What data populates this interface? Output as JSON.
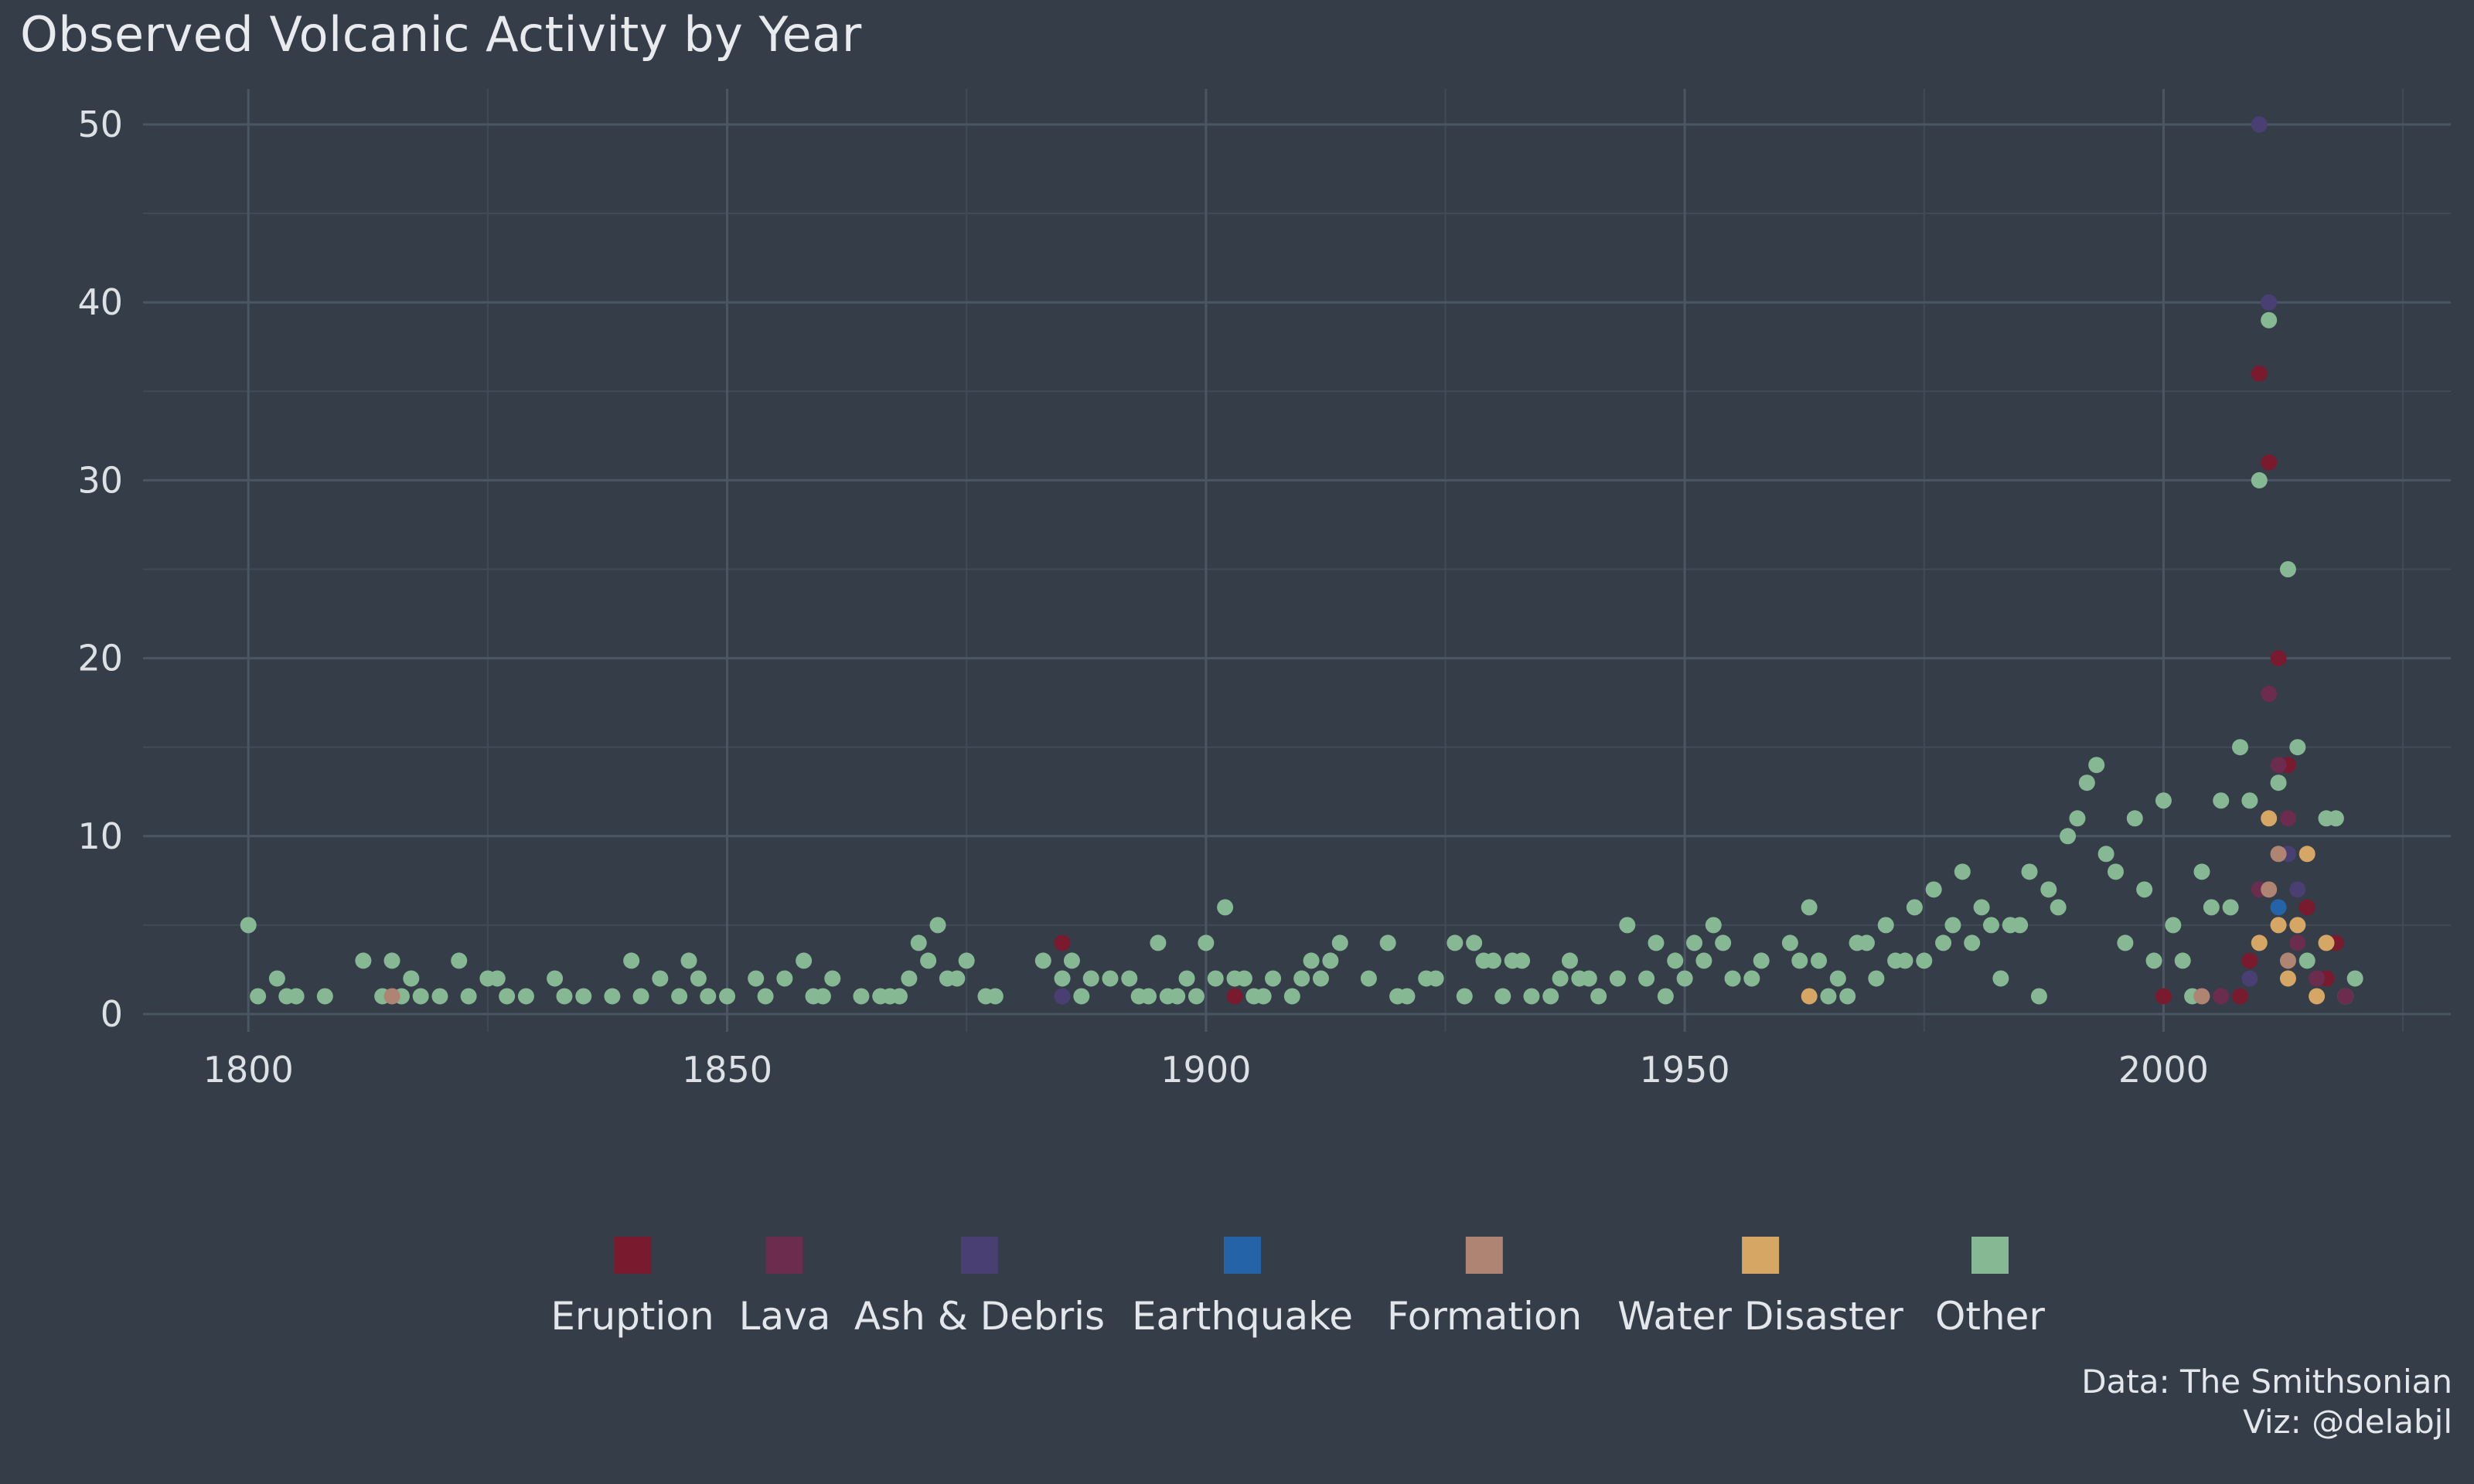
{
  "title": "Observed Volcanic Activity by Year",
  "caption": {
    "line1": "Data: The Smithsonian",
    "line2": "Viz: @delabjl"
  },
  "colors": {
    "background": "#343d48",
    "grid_major": "#4b5664",
    "grid_minor": "#414b57",
    "text": "#e3e6ea"
  },
  "chart_data": {
    "type": "scatter",
    "title": "Observed Volcanic Activity by Year",
    "xlabel": "",
    "ylabel": "",
    "xlim": [
      1789,
      2030
    ],
    "ylim": [
      -1,
      52
    ],
    "x_ticks": [
      1800,
      1850,
      1900,
      1950,
      2000
    ],
    "y_ticks": [
      0,
      10,
      20,
      30,
      40,
      50
    ],
    "grid": true,
    "legend_position": "bottom",
    "series": [
      {
        "name": "Eruption",
        "color": "#7a1a2e",
        "points": [
          [
            1885,
            4
          ],
          [
            1903,
            1
          ],
          [
            2000,
            1
          ],
          [
            2008,
            1
          ],
          [
            2009,
            3
          ],
          [
            2010,
            36
          ],
          [
            2011,
            31
          ],
          [
            2012,
            20
          ],
          [
            2013,
            14
          ],
          [
            2015,
            6
          ],
          [
            2017,
            2
          ],
          [
            2018,
            4
          ]
        ]
      },
      {
        "name": "Lava",
        "color": "#6b2c4d",
        "points": [
          [
            2004,
            1
          ],
          [
            2006,
            1
          ],
          [
            2010,
            7
          ],
          [
            2011,
            18
          ],
          [
            2012,
            14
          ],
          [
            2013,
            11
          ],
          [
            2014,
            4
          ],
          [
            2016,
            2
          ],
          [
            2019,
            1
          ]
        ]
      },
      {
        "name": "Ash & Debris",
        "color": "#4a3f73",
        "points": [
          [
            1885,
            1
          ],
          [
            2009,
            2
          ],
          [
            2010,
            50
          ],
          [
            2011,
            40
          ],
          [
            2012,
            5
          ],
          [
            2013,
            9
          ],
          [
            2014,
            7
          ]
        ]
      },
      {
        "name": "Earthquake",
        "color": "#2563a8",
        "points": [
          [
            2012,
            6
          ]
        ]
      },
      {
        "name": "Formation",
        "color": "#b08472",
        "points": [
          [
            1815,
            1
          ],
          [
            2004,
            1
          ],
          [
            2011,
            7
          ],
          [
            2012,
            9
          ],
          [
            2013,
            3
          ]
        ]
      },
      {
        "name": "Water Disaster",
        "color": "#d6a665",
        "points": [
          [
            1963,
            1
          ],
          [
            2010,
            4
          ],
          [
            2011,
            11
          ],
          [
            2012,
            5
          ],
          [
            2013,
            2
          ],
          [
            2014,
            5
          ],
          [
            2015,
            9
          ],
          [
            2016,
            1
          ],
          [
            2017,
            4
          ]
        ]
      },
      {
        "name": "Other",
        "color": "#86b894",
        "points": [
          [
            1800,
            5
          ],
          [
            1801,
            1
          ],
          [
            1803,
            2
          ],
          [
            1804,
            1
          ],
          [
            1805,
            1
          ],
          [
            1808,
            1
          ],
          [
            1812,
            3
          ],
          [
            1814,
            1
          ],
          [
            1815,
            3
          ],
          [
            1816,
            1
          ],
          [
            1817,
            2
          ],
          [
            1818,
            1
          ],
          [
            1820,
            1
          ],
          [
            1822,
            3
          ],
          [
            1823,
            1
          ],
          [
            1825,
            2
          ],
          [
            1826,
            2
          ],
          [
            1827,
            1
          ],
          [
            1829,
            1
          ],
          [
            1832,
            2
          ],
          [
            1833,
            1
          ],
          [
            1835,
            1
          ],
          [
            1838,
            1
          ],
          [
            1840,
            3
          ],
          [
            1841,
            1
          ],
          [
            1843,
            2
          ],
          [
            1845,
            1
          ],
          [
            1846,
            3
          ],
          [
            1847,
            2
          ],
          [
            1848,
            1
          ],
          [
            1850,
            1
          ],
          [
            1853,
            2
          ],
          [
            1854,
            1
          ],
          [
            1856,
            2
          ],
          [
            1858,
            3
          ],
          [
            1859,
            1
          ],
          [
            1860,
            1
          ],
          [
            1861,
            2
          ],
          [
            1864,
            1
          ],
          [
            1866,
            1
          ],
          [
            1867,
            1
          ],
          [
            1868,
            1
          ],
          [
            1869,
            2
          ],
          [
            1870,
            4
          ],
          [
            1871,
            3
          ],
          [
            1872,
            5
          ],
          [
            1873,
            2
          ],
          [
            1874,
            2
          ],
          [
            1875,
            3
          ],
          [
            1877,
            1
          ],
          [
            1878,
            1
          ],
          [
            1883,
            3
          ],
          [
            1885,
            2
          ],
          [
            1886,
            3
          ],
          [
            1887,
            1
          ],
          [
            1888,
            2
          ],
          [
            1890,
            2
          ],
          [
            1892,
            2
          ],
          [
            1893,
            1
          ],
          [
            1894,
            1
          ],
          [
            1895,
            4
          ],
          [
            1896,
            1
          ],
          [
            1897,
            1
          ],
          [
            1898,
            2
          ],
          [
            1899,
            1
          ],
          [
            1900,
            4
          ],
          [
            1901,
            2
          ],
          [
            1902,
            6
          ],
          [
            1903,
            2
          ],
          [
            1904,
            2
          ],
          [
            1905,
            1
          ],
          [
            1906,
            1
          ],
          [
            1907,
            2
          ],
          [
            1909,
            1
          ],
          [
            1910,
            2
          ],
          [
            1911,
            3
          ],
          [
            1912,
            2
          ],
          [
            1913,
            3
          ],
          [
            1914,
            4
          ],
          [
            1917,
            2
          ],
          [
            1919,
            4
          ],
          [
            1920,
            1
          ],
          [
            1921,
            1
          ],
          [
            1923,
            2
          ],
          [
            1924,
            2
          ],
          [
            1926,
            4
          ],
          [
            1927,
            1
          ],
          [
            1928,
            4
          ],
          [
            1929,
            3
          ],
          [
            1930,
            3
          ],
          [
            1931,
            1
          ],
          [
            1932,
            3
          ],
          [
            1933,
            3
          ],
          [
            1934,
            1
          ],
          [
            1936,
            1
          ],
          [
            1937,
            2
          ],
          [
            1938,
            3
          ],
          [
            1939,
            2
          ],
          [
            1940,
            2
          ],
          [
            1941,
            1
          ],
          [
            1943,
            2
          ],
          [
            1944,
            5
          ],
          [
            1946,
            2
          ],
          [
            1947,
            4
          ],
          [
            1948,
            1
          ],
          [
            1949,
            3
          ],
          [
            1950,
            2
          ],
          [
            1951,
            4
          ],
          [
            1952,
            3
          ],
          [
            1953,
            5
          ],
          [
            1954,
            4
          ],
          [
            1955,
            2
          ],
          [
            1957,
            2
          ],
          [
            1958,
            3
          ],
          [
            1961,
            4
          ],
          [
            1962,
            3
          ],
          [
            1963,
            6
          ],
          [
            1964,
            3
          ],
          [
            1965,
            1
          ],
          [
            1966,
            2
          ],
          [
            1967,
            1
          ],
          [
            1968,
            4
          ],
          [
            1969,
            4
          ],
          [
            1970,
            2
          ],
          [
            1971,
            5
          ],
          [
            1972,
            3
          ],
          [
            1973,
            3
          ],
          [
            1974,
            6
          ],
          [
            1975,
            3
          ],
          [
            1976,
            7
          ],
          [
            1977,
            4
          ],
          [
            1978,
            5
          ],
          [
            1979,
            8
          ],
          [
            1980,
            4
          ],
          [
            1981,
            6
          ],
          [
            1982,
            5
          ],
          [
            1983,
            2
          ],
          [
            1984,
            5
          ],
          [
            1985,
            5
          ],
          [
            1986,
            8
          ],
          [
            1987,
            1
          ],
          [
            1988,
            7
          ],
          [
            1989,
            6
          ],
          [
            1990,
            10
          ],
          [
            1991,
            11
          ],
          [
            1992,
            13
          ],
          [
            1993,
            14
          ],
          [
            1994,
            9
          ],
          [
            1995,
            8
          ],
          [
            1996,
            4
          ],
          [
            1997,
            11
          ],
          [
            1998,
            7
          ],
          [
            1999,
            3
          ],
          [
            2000,
            12
          ],
          [
            2001,
            5
          ],
          [
            2002,
            3
          ],
          [
            2003,
            1
          ],
          [
            2004,
            8
          ],
          [
            2005,
            6
          ],
          [
            2006,
            12
          ],
          [
            2007,
            6
          ],
          [
            2008,
            15
          ],
          [
            2009,
            12
          ],
          [
            2010,
            30
          ],
          [
            2011,
            39
          ],
          [
            2012,
            13
          ],
          [
            2013,
            25
          ],
          [
            2014,
            15
          ],
          [
            2015,
            3
          ],
          [
            2017,
            11
          ],
          [
            2018,
            11
          ],
          [
            2019,
            1
          ],
          [
            2020,
            2
          ]
        ]
      }
    ]
  }
}
